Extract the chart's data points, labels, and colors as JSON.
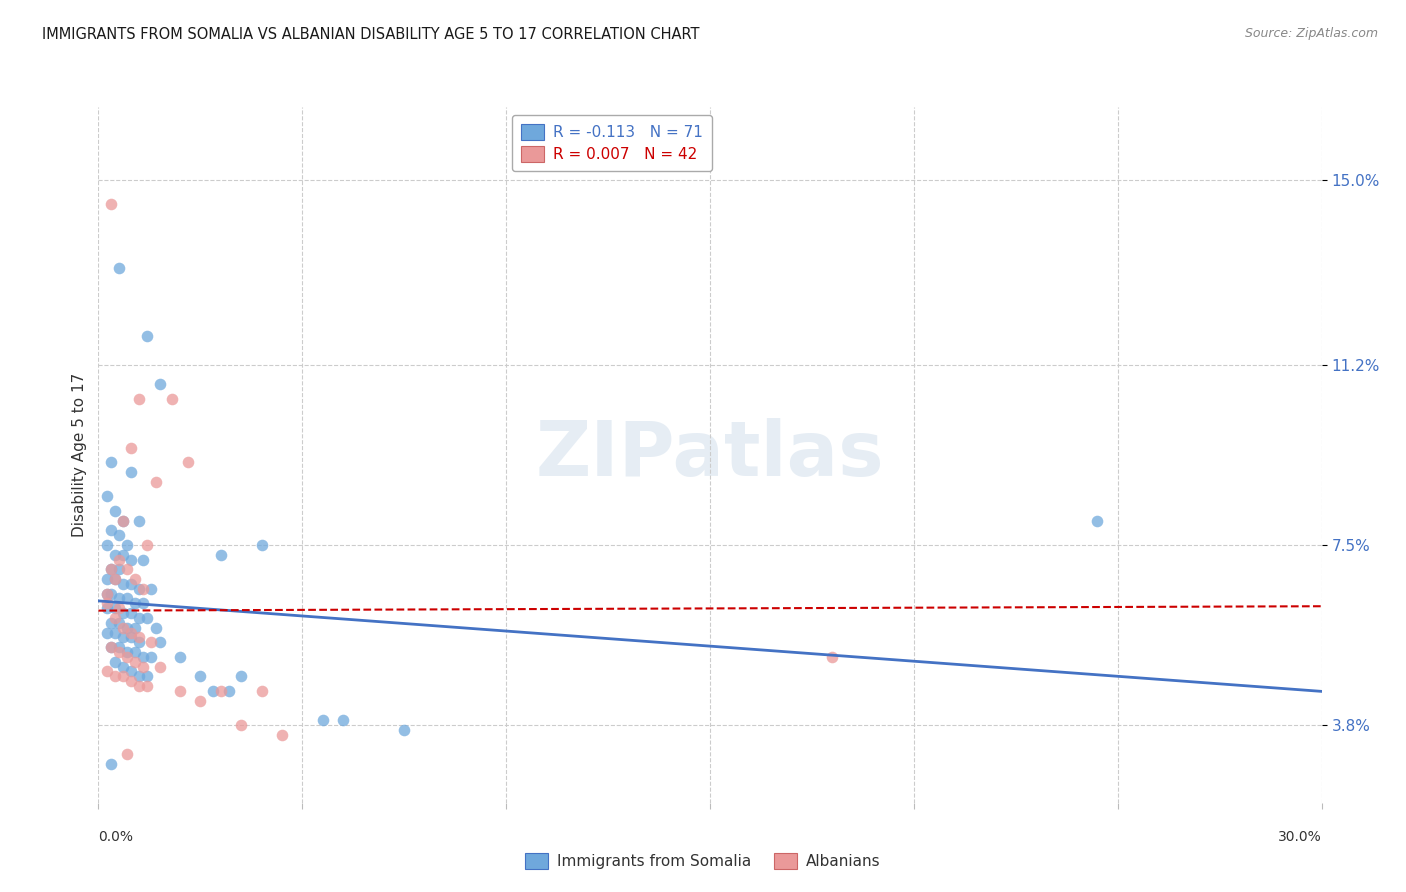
{
  "title": "IMMIGRANTS FROM SOMALIA VS ALBANIAN DISABILITY AGE 5 TO 17 CORRELATION CHART",
  "source": "Source: ZipAtlas.com",
  "ylabel": "Disability Age 5 to 17",
  "yticks": [
    3.8,
    7.5,
    11.2,
    15.0
  ],
  "ytick_labels": [
    "3.8%",
    "7.5%",
    "11.2%",
    "15.0%"
  ],
  "xlim": [
    0.0,
    30.0
  ],
  "ylim": [
    2.2,
    16.5
  ],
  "legend1_label": "Immigrants from Somalia",
  "legend2_label": "Albanians",
  "somalia_color": "#6fa8dc",
  "albanian_color": "#ea9999",
  "somalia_line_color": "#4472c4",
  "albanian_line_color": "#cc0000",
  "som_y0": 6.35,
  "som_slope": -0.062,
  "alb_y0": 6.15,
  "alb_slope": 0.003,
  "somalia_points": [
    [
      0.5,
      13.2
    ],
    [
      1.2,
      11.8
    ],
    [
      1.5,
      10.8
    ],
    [
      0.3,
      9.2
    ],
    [
      0.8,
      9.0
    ],
    [
      0.2,
      8.5
    ],
    [
      0.4,
      8.2
    ],
    [
      0.6,
      8.0
    ],
    [
      1.0,
      8.0
    ],
    [
      0.3,
      7.8
    ],
    [
      0.5,
      7.7
    ],
    [
      0.7,
      7.5
    ],
    [
      0.2,
      7.5
    ],
    [
      0.4,
      7.3
    ],
    [
      0.6,
      7.3
    ],
    [
      0.8,
      7.2
    ],
    [
      1.1,
      7.2
    ],
    [
      0.3,
      7.0
    ],
    [
      0.5,
      7.0
    ],
    [
      0.2,
      6.8
    ],
    [
      0.4,
      6.8
    ],
    [
      0.6,
      6.7
    ],
    [
      0.8,
      6.7
    ],
    [
      1.0,
      6.6
    ],
    [
      1.3,
      6.6
    ],
    [
      0.2,
      6.5
    ],
    [
      0.3,
      6.5
    ],
    [
      0.5,
      6.4
    ],
    [
      0.7,
      6.4
    ],
    [
      0.9,
      6.3
    ],
    [
      1.1,
      6.3
    ],
    [
      0.2,
      6.2
    ],
    [
      0.4,
      6.2
    ],
    [
      0.6,
      6.1
    ],
    [
      0.8,
      6.1
    ],
    [
      1.0,
      6.0
    ],
    [
      1.2,
      6.0
    ],
    [
      0.3,
      5.9
    ],
    [
      0.5,
      5.9
    ],
    [
      0.7,
      5.8
    ],
    [
      0.9,
      5.8
    ],
    [
      1.4,
      5.8
    ],
    [
      0.2,
      5.7
    ],
    [
      0.4,
      5.7
    ],
    [
      0.6,
      5.6
    ],
    [
      0.8,
      5.6
    ],
    [
      1.0,
      5.5
    ],
    [
      1.5,
      5.5
    ],
    [
      0.3,
      5.4
    ],
    [
      0.5,
      5.4
    ],
    [
      0.7,
      5.3
    ],
    [
      0.9,
      5.3
    ],
    [
      1.1,
      5.2
    ],
    [
      1.3,
      5.2
    ],
    [
      2.0,
      5.2
    ],
    [
      0.4,
      5.1
    ],
    [
      0.6,
      5.0
    ],
    [
      0.8,
      4.9
    ],
    [
      1.0,
      4.8
    ],
    [
      1.2,
      4.8
    ],
    [
      2.5,
      4.8
    ],
    [
      3.5,
      4.8
    ],
    [
      5.5,
      3.9
    ],
    [
      6.0,
      3.9
    ],
    [
      7.5,
      3.7
    ],
    [
      24.5,
      8.0
    ],
    [
      4.0,
      7.5
    ],
    [
      3.0,
      7.3
    ],
    [
      2.8,
      4.5
    ],
    [
      3.2,
      4.5
    ],
    [
      0.3,
      3.0
    ]
  ],
  "albanian_points": [
    [
      0.2,
      6.5
    ],
    [
      0.4,
      6.8
    ],
    [
      0.6,
      8.0
    ],
    [
      0.8,
      9.5
    ],
    [
      1.0,
      10.5
    ],
    [
      1.2,
      7.5
    ],
    [
      1.4,
      8.8
    ],
    [
      0.3,
      7.0
    ],
    [
      0.5,
      7.2
    ],
    [
      0.7,
      7.0
    ],
    [
      0.9,
      6.8
    ],
    [
      1.1,
      6.6
    ],
    [
      0.2,
      6.3
    ],
    [
      0.4,
      6.0
    ],
    [
      0.6,
      5.8
    ],
    [
      0.8,
      5.7
    ],
    [
      1.0,
      5.6
    ],
    [
      1.3,
      5.5
    ],
    [
      0.3,
      5.4
    ],
    [
      0.5,
      5.3
    ],
    [
      0.7,
      5.2
    ],
    [
      0.9,
      5.1
    ],
    [
      1.1,
      5.0
    ],
    [
      1.5,
      5.0
    ],
    [
      0.2,
      4.9
    ],
    [
      0.4,
      4.8
    ],
    [
      0.6,
      4.8
    ],
    [
      0.8,
      4.7
    ],
    [
      1.0,
      4.6
    ],
    [
      1.2,
      4.6
    ],
    [
      2.0,
      4.5
    ],
    [
      2.5,
      4.3
    ],
    [
      3.0,
      4.5
    ],
    [
      3.5,
      3.8
    ],
    [
      0.3,
      14.5
    ],
    [
      1.8,
      10.5
    ],
    [
      2.2,
      9.2
    ],
    [
      0.5,
      6.2
    ],
    [
      18.0,
      5.2
    ],
    [
      4.5,
      3.6
    ],
    [
      4.0,
      4.5
    ],
    [
      0.7,
      3.2
    ]
  ]
}
